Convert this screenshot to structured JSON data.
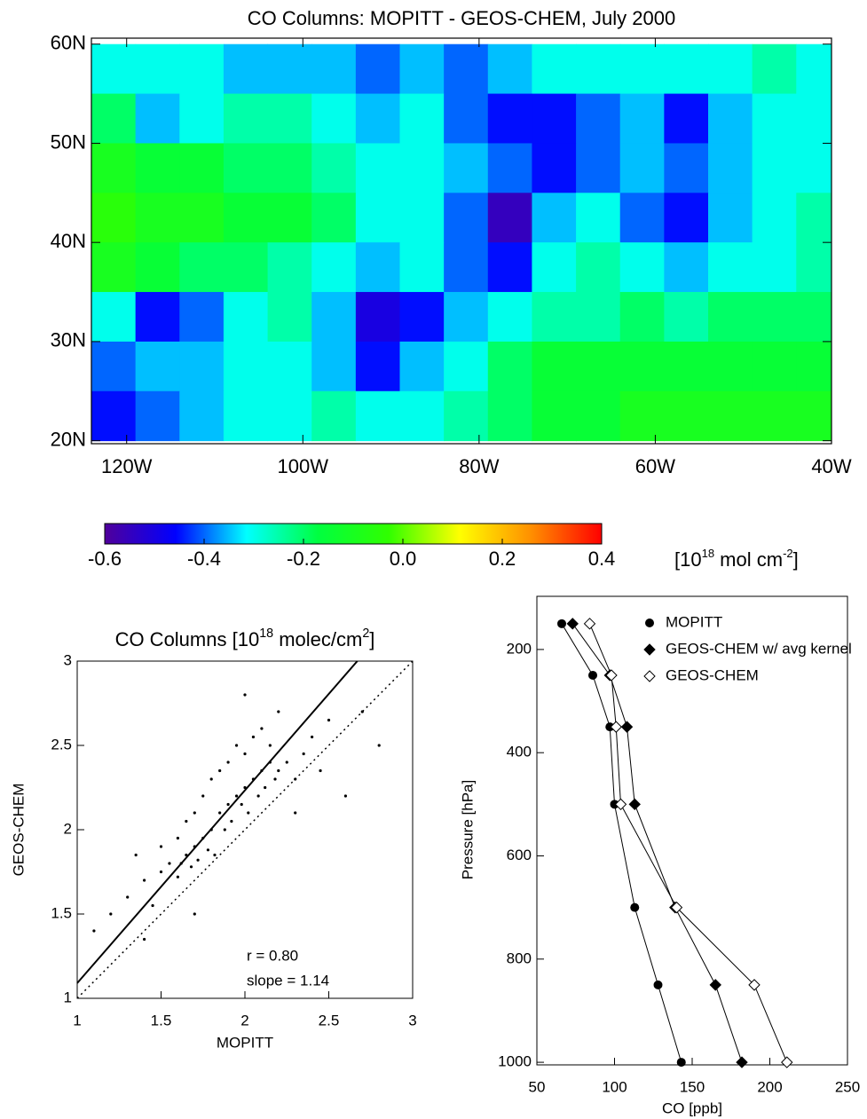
{
  "chart_data": [
    {
      "type": "heatmap",
      "title": "CO Columns: MOPITT - GEOS-CHEM, July 2000",
      "x": [
        -121.5,
        -116.5,
        -111.5,
        -106.5,
        -101.5,
        -96.5,
        -91.5,
        -86.5,
        -81.5,
        -76.5,
        -71.5,
        -66.5,
        -61.5,
        -56.5,
        -51.5,
        -46.5,
        -41.5
      ],
      "y": [
        57.5,
        52.5,
        47.5,
        42.5,
        37.5,
        32.5,
        27.5,
        22.5
      ],
      "values": [
        [
          -0.3,
          -0.3,
          -0.3,
          -0.35,
          -0.35,
          -0.35,
          -0.4,
          -0.35,
          -0.4,
          -0.35,
          -0.3,
          -0.3,
          -0.3,
          -0.3,
          -0.3,
          -0.25,
          -0.3
        ],
        [
          -0.2,
          -0.35,
          -0.3,
          -0.25,
          -0.25,
          -0.3,
          -0.35,
          -0.3,
          -0.4,
          -0.45,
          -0.45,
          -0.4,
          -0.35,
          -0.45,
          -0.35,
          -0.3,
          -0.3
        ],
        [
          -0.1,
          -0.15,
          -0.15,
          -0.2,
          -0.2,
          -0.25,
          -0.3,
          -0.3,
          -0.35,
          -0.4,
          -0.45,
          -0.4,
          -0.35,
          -0.4,
          -0.35,
          -0.3,
          -0.3
        ],
        [
          -0.05,
          -0.1,
          -0.1,
          -0.15,
          -0.15,
          -0.2,
          -0.3,
          -0.3,
          -0.4,
          -0.55,
          -0.35,
          -0.3,
          -0.4,
          -0.45,
          -0.35,
          -0.3,
          -0.25
        ],
        [
          -0.1,
          -0.15,
          -0.2,
          -0.2,
          -0.25,
          -0.3,
          -0.35,
          -0.3,
          -0.4,
          -0.45,
          -0.3,
          -0.25,
          -0.3,
          -0.35,
          -0.3,
          -0.3,
          -0.25
        ],
        [
          -0.3,
          -0.45,
          -0.4,
          -0.3,
          -0.25,
          -0.35,
          -0.5,
          -0.45,
          -0.35,
          -0.3,
          -0.25,
          -0.25,
          -0.2,
          -0.25,
          -0.2,
          -0.2,
          -0.2
        ],
        [
          -0.4,
          -0.35,
          -0.35,
          -0.3,
          -0.3,
          -0.35,
          -0.45,
          -0.35,
          -0.3,
          -0.2,
          -0.15,
          -0.15,
          -0.15,
          -0.15,
          -0.15,
          -0.15,
          -0.15
        ],
        [
          -0.45,
          -0.4,
          -0.35,
          -0.3,
          -0.3,
          -0.25,
          -0.3,
          -0.3,
          -0.25,
          -0.2,
          -0.15,
          -0.15,
          -0.1,
          -0.1,
          -0.1,
          -0.1,
          -0.1
        ]
      ],
      "xlim": [
        -124,
        -40
      ],
      "xticks": [
        {
          "value": -120,
          "label": "120W"
        },
        {
          "value": -100,
          "label": "100W"
        },
        {
          "value": -80,
          "label": "80W"
        },
        {
          "value": -60,
          "label": "60W"
        },
        {
          "value": -40,
          "label": "40W"
        }
      ],
      "ylim": [
        19.7,
        60.6
      ],
      "yticks": [
        {
          "value": 20,
          "label": "20N"
        },
        {
          "value": 30,
          "label": "30N"
        },
        {
          "value": 40,
          "label": "40N"
        },
        {
          "value": 50,
          "label": "50N"
        },
        {
          "value": 60,
          "label": "60N"
        }
      ],
      "colormap": [
        "#50009b",
        "#0000ff",
        "#00ffff",
        "#00ff40",
        "#30ff00",
        "#ffff00",
        "#ff9000",
        "#ff0000"
      ],
      "zlim": [
        -0.6,
        0.4
      ],
      "zticks": [
        -0.6,
        -0.4,
        -0.2,
        {
          "value": 0,
          "label": "0.0"
        },
        0.2,
        0.4
      ],
      "colorbar_label": [
        "[10",
        "18",
        " mol cm",
        "-2",
        "]"
      ]
    },
    {
      "type": "scatter",
      "title": [
        "CO Columns [10",
        "18",
        " molec/cm",
        "2",
        "]"
      ],
      "x_label": "MOPITT",
      "y_label": "GEOS-CHEM",
      "x": [
        1.2,
        1.3,
        1.35,
        1.4,
        1.45,
        1.5,
        1.5,
        1.55,
        1.6,
        1.6,
        1.62,
        1.65,
        1.65,
        1.68,
        1.7,
        1.7,
        1.72,
        1.75,
        1.75,
        1.78,
        1.8,
        1.8,
        1.82,
        1.85,
        1.85,
        1.88,
        1.9,
        1.9,
        1.92,
        1.95,
        1.95,
        1.98,
        2.0,
        2.0,
        2.02,
        2.05,
        2.05,
        2.08,
        2.1,
        2.1,
        2.12,
        2.15,
        2.15,
        2.18,
        2.2,
        2.2,
        2.25,
        2.3,
        2.35,
        2.4,
        2.45,
        2.5,
        2.6,
        2.7,
        2.8,
        1.1,
        1.4,
        2.3,
        1.7,
        2.0
      ],
      "values": [
        1.5,
        1.6,
        1.85,
        1.7,
        1.55,
        1.75,
        1.9,
        1.8,
        1.72,
        1.95,
        1.8,
        1.85,
        2.05,
        1.78,
        1.9,
        2.1,
        1.82,
        1.95,
        2.2,
        1.88,
        2.0,
        2.3,
        1.85,
        2.1,
        2.35,
        2.0,
        2.15,
        2.4,
        2.05,
        2.2,
        2.5,
        2.15,
        2.25,
        2.45,
        2.1,
        2.3,
        2.55,
        2.2,
        2.35,
        2.6,
        2.25,
        2.4,
        2.5,
        2.3,
        2.35,
        2.7,
        2.4,
        2.3,
        2.45,
        2.55,
        2.35,
        2.65,
        2.2,
        2.7,
        2.5,
        1.4,
        1.35,
        2.1,
        1.5,
        2.8
      ],
      "color": "#000000",
      "fit_line": {
        "x": [
          1,
          2.67
        ],
        "y": [
          1.09,
          3
        ]
      },
      "identity_line": {
        "x": [
          1,
          3
        ],
        "y": [
          1,
          3
        ]
      },
      "xlim": [
        1,
        3
      ],
      "xticks": [
        1,
        1.5,
        2,
        2.5,
        3
      ],
      "ylim": [
        1,
        3
      ],
      "yticks": [
        1,
        1.5,
        2,
        2.5,
        3
      ],
      "annotations": [
        "r = 0.80",
        "slope = 1.14"
      ]
    },
    {
      "type": "line",
      "x_label": "CO [ppb]",
      "y_label": "Pressure [hPa]",
      "y": [
        150,
        250,
        350,
        500,
        700,
        850,
        1000
      ],
      "series": [
        {
          "name": "MOPITT",
          "color": "#000000",
          "marker": "circle",
          "values": [
            66,
            86,
            97,
            100,
            113,
            128,
            143
          ]
        },
        {
          "name": "GEOS-CHEM w/ avg kernel",
          "color": "#000000",
          "marker": "diamond",
          "values": [
            73,
            97,
            108,
            113,
            139,
            165,
            182
          ]
        },
        {
          "name": "GEOS-CHEM",
          "color": "#000000",
          "marker": "open-diamond",
          "values": [
            84,
            98,
            101,
            104,
            140,
            190,
            211
          ]
        }
      ],
      "xlim": [
        50,
        250
      ],
      "xticks": [
        50,
        100,
        150,
        200,
        250
      ],
      "ylim": [
        1005,
        97
      ],
      "yticks": [
        200,
        400,
        600,
        800,
        1000
      ],
      "legend": "top-right"
    }
  ]
}
